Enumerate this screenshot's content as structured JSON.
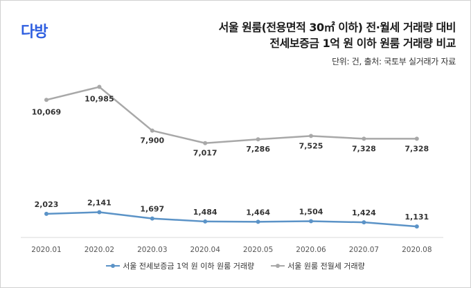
{
  "header": {
    "logo": "다방",
    "title_line1": "서울 원룸(전용면적 30㎡ 이하) 전·월세 거래량 대비",
    "title_line2": "전세보증금 1억 원 이하 원룸 거래량 비교",
    "source": "단위: 건, 출처: 국토부 실거래가 자료"
  },
  "chart_data": {
    "type": "line",
    "categories": [
      "2020.01",
      "2020.02",
      "2020.03",
      "2020.04",
      "2020.05",
      "2020.06",
      "2020.07",
      "2020.08"
    ],
    "series": [
      {
        "name": "서울 원룸 전월세 거래량",
        "values": [
          10069,
          10985,
          7900,
          7017,
          7286,
          7525,
          7328,
          7328
        ],
        "labels": [
          "10,069",
          "10,985",
          "7,900",
          "7,017",
          "7,286",
          "7,525",
          "7,328",
          "7,328"
        ],
        "color": "#a8a8a8"
      },
      {
        "name": "서울 전세보증금 1억 원 이하 원룸 거래량",
        "values": [
          2023,
          2141,
          1697,
          1484,
          1464,
          1504,
          1424,
          1131
        ],
        "labels": [
          "2,023",
          "2,141",
          "1,697",
          "1,484",
          "1,464",
          "1,504",
          "1,424",
          "1,131"
        ],
        "color": "#5b93c7"
      }
    ],
    "grid": false,
    "legend_position": "bottom"
  }
}
